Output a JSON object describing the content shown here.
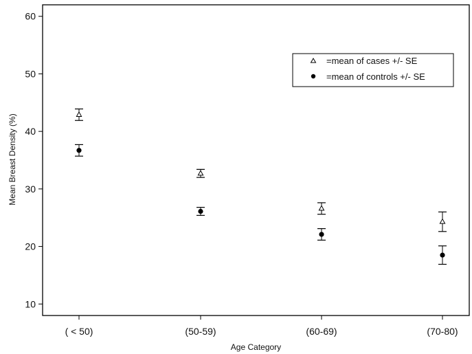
{
  "chart_data": {
    "type": "scatter",
    "title": "",
    "xlabel": "Age Category",
    "ylabel": "Mean Breast Density (%)",
    "categories": [
      "( < 50)",
      "(50-59)",
      "(60-69)",
      "(70-80)"
    ],
    "ylim": [
      8,
      62
    ],
    "yticks": [
      10,
      20,
      30,
      40,
      50,
      60
    ],
    "grid": false,
    "legend_position": "top-right",
    "series": [
      {
        "name": "=mean of cases +/- SE",
        "marker": "open-triangle",
        "values": [
          42.9,
          32.7,
          26.6,
          24.3
        ],
        "se": [
          1.0,
          0.7,
          1.0,
          1.7
        ]
      },
      {
        "name": "=mean of controls +/- SE",
        "marker": "filled-circle",
        "values": [
          36.7,
          26.1,
          22.1,
          18.5
        ],
        "se": [
          1.0,
          0.7,
          1.0,
          1.6
        ]
      }
    ]
  }
}
